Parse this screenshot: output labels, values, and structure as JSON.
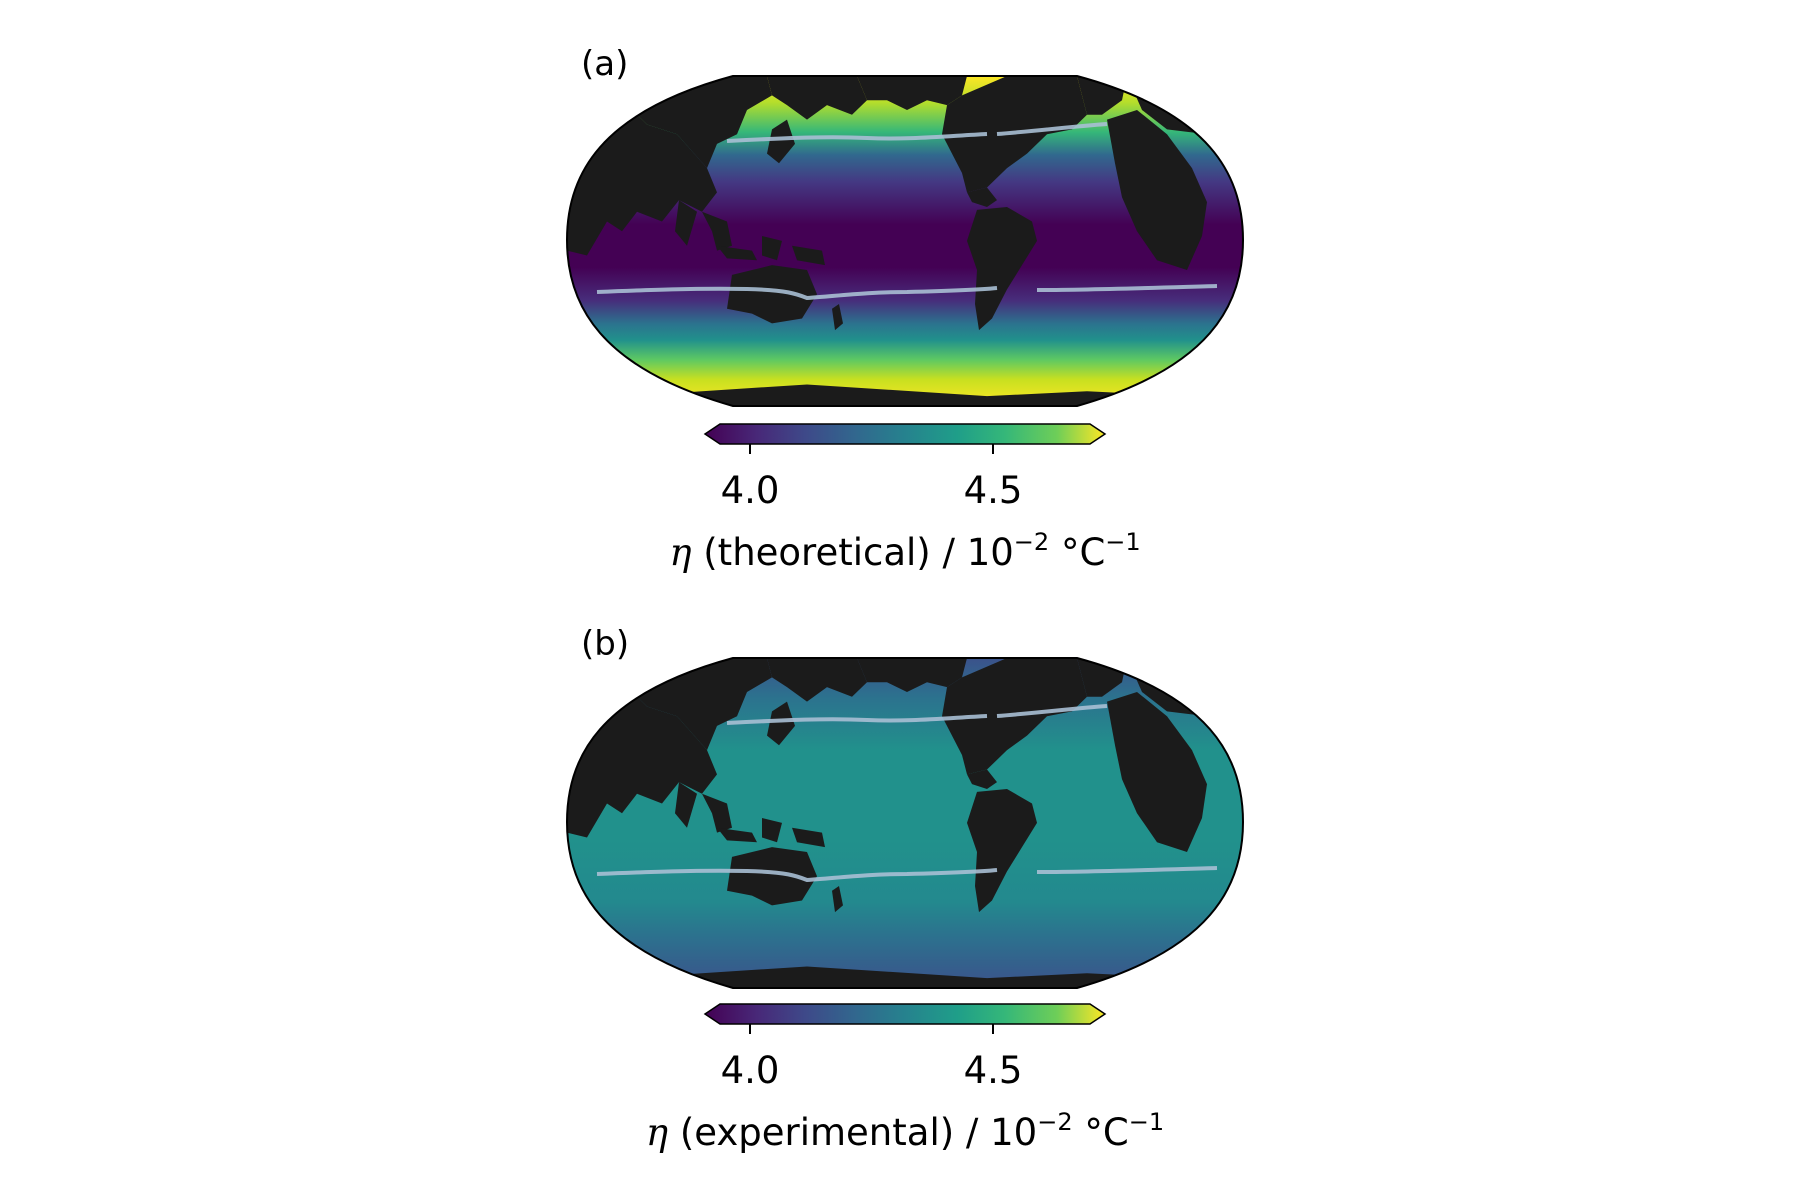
{
  "panels": [
    {
      "id": "a",
      "label": "(a)",
      "colorbar": {
        "colormap": "viridis",
        "extend": "both",
        "ticks": [
          "4.0",
          "4.5"
        ],
        "label_symbol": "η",
        "label_text": " (theoretical) / 10",
        "label_exp": "−2",
        "label_unit": " °C",
        "label_unit_exp": "−1"
      },
      "ocean_pattern": "strong latitudinal gradient: dark purple tropics, teal mid-latitudes, yellow high latitudes"
    },
    {
      "id": "b",
      "label": "(b)",
      "colorbar": {
        "colormap": "viridis",
        "extend": "both",
        "ticks": [
          "4.0",
          "4.5"
        ],
        "label_symbol": "η",
        "label_text": " (experimental) / 10",
        "label_exp": "−2",
        "label_unit": " °C",
        "label_unit_exp": "−1"
      },
      "ocean_pattern": "nearly uniform teal, slightly bluer at high latitudes"
    }
  ],
  "colors": {
    "land": "#1b1b1b",
    "contour_line": "#a9bfd4",
    "viridis": [
      "#440154",
      "#3b528b",
      "#21918c",
      "#5ec962",
      "#fde725"
    ]
  }
}
